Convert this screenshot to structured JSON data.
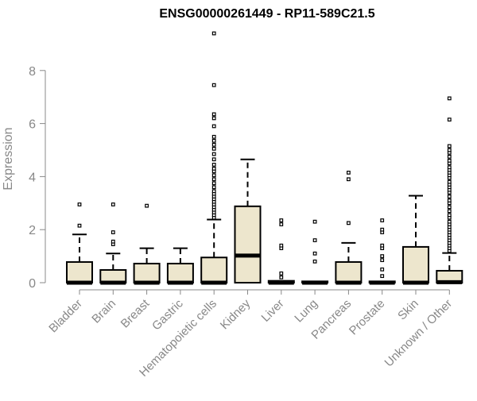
{
  "chart_data": {
    "type": "boxplot",
    "title": "ENSG00000261449 - RP11-589C21.5",
    "xlabel": "",
    "ylabel": "Expression",
    "ylim": [
      0,
      9.4
    ],
    "yticks": [
      0,
      2,
      4,
      6,
      8
    ],
    "grid": false,
    "colors": {
      "box_fill": "#ede6cd",
      "stroke": "#000000",
      "axis_text": "#888888"
    },
    "categories": [
      "Bladder",
      "Brain",
      "Breast",
      "Gastric",
      "Hematopoietic cells",
      "Kidney",
      "Liver",
      "Lung",
      "Pancreas",
      "Prostate",
      "Skin",
      "Unknown / Other"
    ],
    "boxes": [
      {
        "category": "Bladder",
        "q1": 0,
        "median": 0,
        "q3": 0.78,
        "whisker_low": 0,
        "whisker_high": 1.82,
        "outliers": [
          2.15,
          2.95
        ]
      },
      {
        "category": "Brain",
        "q1": 0,
        "median": 0,
        "q3": 0.48,
        "whisker_low": 0,
        "whisker_high": 1.1,
        "outliers": [
          1.45,
          1.55,
          1.9,
          2.95
        ]
      },
      {
        "category": "Breast",
        "q1": 0,
        "median": 0,
        "q3": 0.72,
        "whisker_low": 0,
        "whisker_high": 1.3,
        "outliers": [
          2.9
        ]
      },
      {
        "category": "Gastric",
        "q1": 0,
        "median": 0,
        "q3": 0.72,
        "whisker_low": 0,
        "whisker_high": 1.3,
        "outliers": []
      },
      {
        "category": "Hematopoietic cells",
        "q1": 0,
        "median": 0,
        "q3": 0.95,
        "whisker_low": 0,
        "whisker_high": 2.38,
        "outliers": [
          2.45,
          2.55,
          2.65,
          2.75,
          2.85,
          2.95,
          3.05,
          3.15,
          3.25,
          3.35,
          3.45,
          3.6,
          3.75,
          3.9,
          4.05,
          4.2,
          4.3,
          4.45,
          4.65,
          4.85,
          5.05,
          5.2,
          5.35,
          5.5,
          5.9,
          6.2,
          6.35,
          7.45,
          9.4
        ]
      },
      {
        "category": "Kidney",
        "q1": 0,
        "median": 1.02,
        "q3": 2.88,
        "whisker_low": 0,
        "whisker_high": 4.65,
        "outliers": []
      },
      {
        "category": "Liver",
        "q1": 0,
        "median": 0,
        "q3": 0.07,
        "whisker_low": 0,
        "whisker_high": 0.07,
        "outliers": [
          0.2,
          0.35,
          1.3,
          1.4,
          2.2,
          2.35
        ]
      },
      {
        "category": "Lung",
        "q1": 0,
        "median": 0,
        "q3": 0.05,
        "whisker_low": 0,
        "whisker_high": 0.05,
        "outliers": [
          0.8,
          1.1,
          1.6,
          2.3
        ]
      },
      {
        "category": "Pancreas",
        "q1": 0,
        "median": 0,
        "q3": 0.78,
        "whisker_low": 0,
        "whisker_high": 1.5,
        "outliers": [
          2.25,
          3.9,
          4.15
        ]
      },
      {
        "category": "Prostate",
        "q1": 0,
        "median": 0,
        "q3": 0.05,
        "whisker_low": 0,
        "whisker_high": 0.05,
        "outliers": [
          0.25,
          0.5,
          0.85,
          1.0,
          1.3,
          1.4,
          1.9,
          2.0,
          2.35
        ]
      },
      {
        "category": "Skin",
        "q1": 0,
        "median": 0,
        "q3": 1.35,
        "whisker_low": 0,
        "whisker_high": 3.28,
        "outliers": []
      },
      {
        "category": "Unknown / Other",
        "q1": 0,
        "median": 0.02,
        "q3": 0.45,
        "whisker_low": 0,
        "whisker_high": 1.12,
        "outliers": [
          1.2,
          1.3,
          1.4,
          1.5,
          1.6,
          1.7,
          1.8,
          1.9,
          2.0,
          2.1,
          2.2,
          2.3,
          2.45,
          2.55,
          2.7,
          2.85,
          3.0,
          3.1,
          3.25,
          3.4,
          3.5,
          3.6,
          3.7,
          3.8,
          3.95,
          4.05,
          4.15,
          4.25,
          4.35,
          4.5,
          4.6,
          4.75,
          4.9,
          5.0,
          5.15,
          6.15,
          6.95
        ]
      }
    ]
  }
}
